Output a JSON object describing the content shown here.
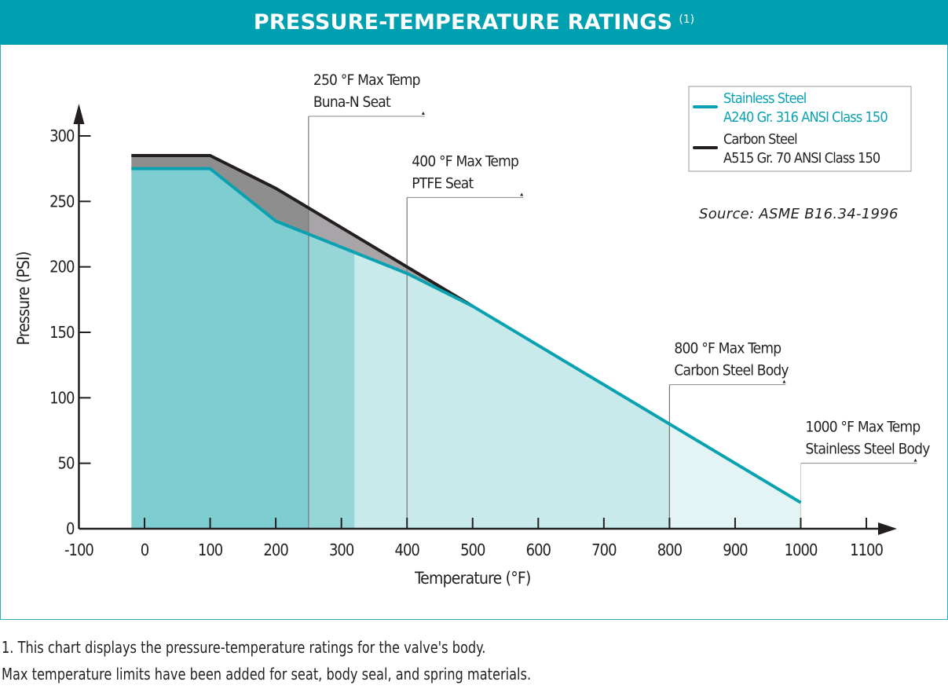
{
  "header": {
    "title": "PRESSURE-TEMPERATURE RATINGS",
    "footnote_ref": "(1)"
  },
  "footnotes": [
    "1.  This chart displays the pressure-temperature ratings for the valve's body.",
    "Max temperature limits have been added for seat, body seal, and spring materials."
  ],
  "colors": {
    "header_bg": "#00a0b0",
    "stainless": "#0aa1b1",
    "carbon": "#231f20",
    "fill_dark": "#7ecdd0",
    "fill_mid": "#96d6d9",
    "fill_light": "#c9eaea",
    "fill_lightest": "#e3f4f4",
    "gap_dark": "#8f8e8f",
    "gap_light": "#a7a5a7"
  },
  "chart_data": {
    "type": "area",
    "title": "PRESSURE-TEMPERATURE RATINGS",
    "xlabel": "Temperature (°F)",
    "ylabel": "Pressure (PSI)",
    "xlim": [
      -100,
      1150
    ],
    "ylim": [
      0,
      320
    ],
    "x_ticks": [
      -100,
      0,
      100,
      200,
      300,
      400,
      500,
      600,
      700,
      800,
      900,
      1000,
      1100
    ],
    "y_ticks": [
      0,
      50,
      100,
      150,
      200,
      250,
      300
    ],
    "grid": false,
    "series": [
      {
        "name": "Stainless Steel A240 Gr. 316 ANSI Class 150",
        "legend_line1": "Stainless Steel",
        "legend_line2": "A240 Gr. 316 ANSI Class 150",
        "color_key": "stainless",
        "points": [
          [
            -20,
            275
          ],
          [
            100,
            275
          ],
          [
            200,
            235
          ],
          [
            400,
            195
          ],
          [
            500,
            170
          ],
          [
            1000,
            20
          ]
        ]
      },
      {
        "name": "Carbon Steel A515 Gr. 70 ANSI Class 150",
        "legend_line1": "Carbon Steel",
        "legend_line2": "A515 Gr. 70 ANSI Class 150",
        "color_key": "carbon",
        "points": [
          [
            -20,
            285
          ],
          [
            100,
            285
          ],
          [
            200,
            260
          ],
          [
            400,
            200
          ],
          [
            500,
            170
          ]
        ]
      }
    ],
    "bands": [
      {
        "from": -20,
        "to": 250,
        "color_key": "fill_dark"
      },
      {
        "from": 250,
        "to": 320,
        "color_key": "fill_mid"
      },
      {
        "from": 320,
        "to": 800,
        "color_key": "fill_light"
      },
      {
        "from": 800,
        "to": 1000,
        "color_key": "fill_lightest"
      }
    ],
    "legend_position": "top-right",
    "source": "Source: ASME B16.34-1996",
    "annotations": [
      {
        "x": 250,
        "line1": "250 °F Max Temp",
        "line2": "Buna-N  Seat",
        "top": 315
      },
      {
        "x": 400,
        "line1": "400 °F Max Temp",
        "line2": "PTFE Seat",
        "top": 253
      },
      {
        "x": 800,
        "line1": "800 °F Max Temp",
        "line2": "Carbon Steel Body",
        "top": 110
      },
      {
        "x": 1000,
        "line1": "1000 °F Max Temp",
        "line2": "Stainless Steel Body",
        "top": 50
      }
    ]
  }
}
